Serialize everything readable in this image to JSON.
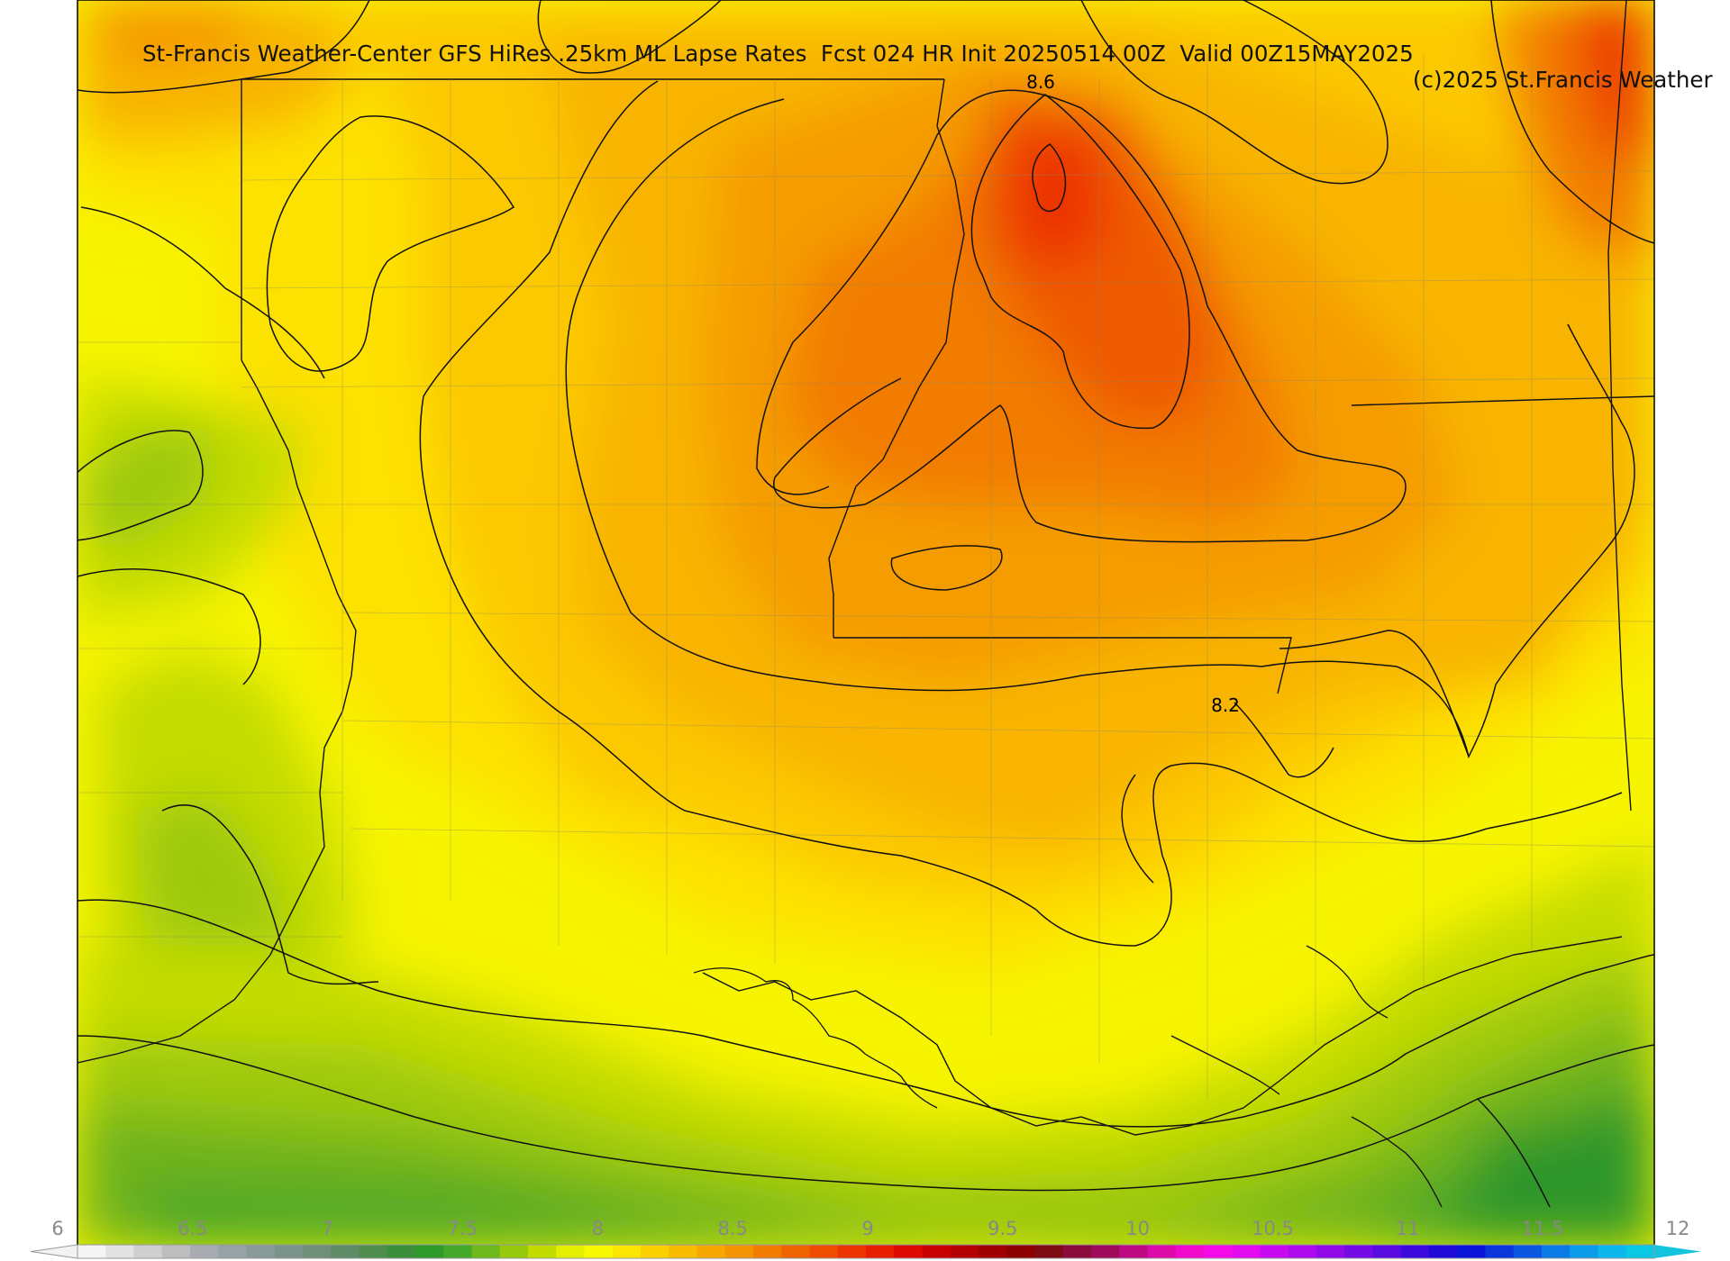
{
  "header": {
    "title": "St-Francis Weather-Center GFS HiRes .25km ML Lapse Rates  Fcst 024 HR Init 20250514 00Z  Valid 00Z15MAY2025",
    "copyright": "(c)2025 St.Francis Weather"
  },
  "map": {
    "field": "ML Lapse Rates",
    "contour_labels": [
      "8.6",
      "8.2"
    ]
  },
  "colorbar": {
    "ticks": [
      "6",
      "6.5",
      "7",
      "7.5",
      "8",
      "8.5",
      "9",
      "9.5",
      "10",
      "10.5",
      "11",
      "11.5",
      "12"
    ],
    "colors": [
      "#f4f4f4",
      "#e2e2e2",
      "#cfcfcf",
      "#bdbdbd",
      "#a8acb0",
      "#97a2a6",
      "#889a98",
      "#7b938a",
      "#6f8f78",
      "#5f8c66",
      "#4f8d4e",
      "#3c8f3a",
      "#2e9a2c",
      "#44a82a",
      "#6fb81c",
      "#98c80c",
      "#c3dc00",
      "#e4ee00",
      "#f8f800",
      "#fae600",
      "#fad000",
      "#f8bc00",
      "#f6a800",
      "#f49400",
      "#f27c00",
      "#f06400",
      "#ee4c00",
      "#ec3400",
      "#e81e00",
      "#dc0a00",
      "#c80000",
      "#b40000",
      "#a00000",
      "#8c0000",
      "#7e0a14",
      "#8a0a3a",
      "#a00a5a",
      "#be0a82",
      "#dc0aa8",
      "#f00acc",
      "#f40ae6",
      "#e40af0",
      "#c80af0",
      "#ac0aec",
      "#900ae8",
      "#740ae4",
      "#580ae0",
      "#3c0adc",
      "#200ad8",
      "#0a14d8",
      "#0a36dc",
      "#0a58e0",
      "#0a7ae4",
      "#0a9ce8",
      "#0ab6ea",
      "#0ac8e4"
    ],
    "under_color": "#f2f2f2",
    "over_color": "#13c4dc"
  }
}
